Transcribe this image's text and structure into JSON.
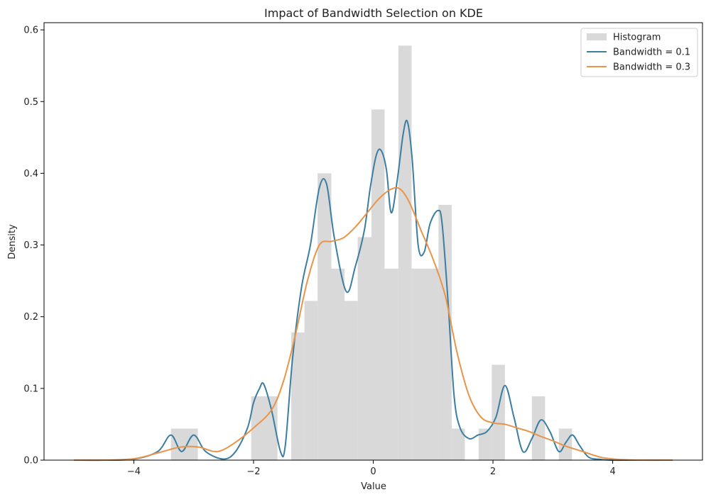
{
  "chart_data": {
    "type": "bar",
    "title": "Impact of Bandwidth Selection on KDE",
    "xlabel": "Value",
    "ylabel": "Density",
    "xlim": [
      -5.5,
      5.5
    ],
    "ylim": [
      0,
      0.61
    ],
    "xticks": [
      -4,
      -2,
      0,
      2,
      4
    ],
    "xtick_labels": [
      "−4",
      "−2",
      "0",
      "2",
      "4"
    ],
    "yticks": [
      0.0,
      0.1,
      0.2,
      0.3,
      0.4,
      0.5,
      0.6
    ],
    "ytick_labels": [
      "0.0",
      "0.1",
      "0.2",
      "0.3",
      "0.4",
      "0.5",
      "0.6"
    ],
    "grid": false,
    "legend_position": "top-right",
    "histogram": {
      "name": "Histogram",
      "color": "#d9d9d9",
      "bins": [
        {
          "x0": -3.38,
          "x1": -2.93,
          "h": 0.044
        },
        {
          "x0": -2.04,
          "x1": -1.6,
          "h": 0.089
        },
        {
          "x0": -1.37,
          "x1": -1.15,
          "h": 0.178
        },
        {
          "x0": -1.15,
          "x1": -0.93,
          "h": 0.222
        },
        {
          "x0": -0.93,
          "x1": -0.7,
          "h": 0.4
        },
        {
          "x0": -0.7,
          "x1": -0.48,
          "h": 0.267
        },
        {
          "x0": -0.48,
          "x1": -0.26,
          "h": 0.222
        },
        {
          "x0": -0.26,
          "x1": -0.03,
          "h": 0.311
        },
        {
          "x0": -0.03,
          "x1": 0.19,
          "h": 0.489
        },
        {
          "x0": 0.19,
          "x1": 0.42,
          "h": 0.267
        },
        {
          "x0": 0.42,
          "x1": 0.64,
          "h": 0.578
        },
        {
          "x0": 0.64,
          "x1": 0.86,
          "h": 0.267
        },
        {
          "x0": 0.86,
          "x1": 1.09,
          "h": 0.267
        },
        {
          "x0": 1.09,
          "x1": 1.31,
          "h": 0.356
        },
        {
          "x0": 1.31,
          "x1": 1.53,
          "h": 0.044
        },
        {
          "x0": 1.76,
          "x1": 1.98,
          "h": 0.044
        },
        {
          "x0": 1.98,
          "x1": 2.2,
          "h": 0.133
        },
        {
          "x0": 2.65,
          "x1": 2.87,
          "h": 0.089
        },
        {
          "x0": 3.1,
          "x1": 3.32,
          "h": 0.044
        }
      ]
    },
    "series": [
      {
        "name": "Bandwidth = 0.1",
        "type": "line",
        "color": "#3b7ea1",
        "x": [
          -5.0,
          -4.5,
          -4.0,
          -3.6,
          -3.38,
          -3.2,
          -3.0,
          -2.8,
          -2.5,
          -2.3,
          -2.1,
          -2.0,
          -1.9,
          -1.83,
          -1.7,
          -1.55,
          -1.47,
          -1.35,
          -1.2,
          -1.05,
          -0.9,
          -0.78,
          -0.65,
          -0.45,
          -0.3,
          -0.15,
          -0.05,
          0.05,
          0.13,
          0.22,
          0.3,
          0.4,
          0.5,
          0.57,
          0.65,
          0.75,
          0.85,
          0.95,
          1.08,
          1.15,
          1.25,
          1.35,
          1.45,
          1.6,
          1.75,
          1.9,
          2.05,
          2.2,
          2.35,
          2.5,
          2.65,
          2.8,
          2.95,
          3.1,
          3.22,
          3.33,
          3.45,
          3.6,
          3.8,
          4.0,
          4.3,
          4.6,
          5.0
        ],
        "y": [
          0.0,
          0.0,
          0.0015,
          0.012,
          0.035,
          0.012,
          0.035,
          0.012,
          0.0015,
          0.012,
          0.045,
          0.08,
          0.1,
          0.106,
          0.07,
          0.012,
          0.02,
          0.14,
          0.24,
          0.3,
          0.38,
          0.385,
          0.31,
          0.235,
          0.27,
          0.32,
          0.38,
          0.425,
          0.432,
          0.405,
          0.345,
          0.39,
          0.455,
          0.472,
          0.42,
          0.3,
          0.29,
          0.33,
          0.348,
          0.33,
          0.22,
          0.09,
          0.045,
          0.03,
          0.035,
          0.04,
          0.06,
          0.104,
          0.06,
          0.012,
          0.03,
          0.056,
          0.04,
          0.012,
          0.025,
          0.035,
          0.02,
          0.004,
          0.001,
          0.0,
          0.0,
          0.0,
          0.0
        ]
      },
      {
        "name": "Bandwidth = 0.3",
        "type": "line",
        "color": "#e8944a",
        "x": [
          -5.0,
          -4.5,
          -4.0,
          -3.6,
          -3.3,
          -3.1,
          -2.9,
          -2.6,
          -2.3,
          -2.0,
          -1.7,
          -1.5,
          -1.3,
          -1.1,
          -0.9,
          -0.7,
          -0.5,
          -0.3,
          -0.1,
          0.1,
          0.3,
          0.45,
          0.6,
          0.8,
          1.0,
          1.2,
          1.4,
          1.6,
          1.8,
          2.0,
          2.2,
          2.4,
          2.6,
          2.8,
          3.0,
          3.2,
          3.5,
          3.8,
          4.1,
          4.5,
          5.0
        ],
        "y": [
          0.0,
          0.0,
          0.002,
          0.01,
          0.017,
          0.019,
          0.018,
          0.012,
          0.025,
          0.045,
          0.07,
          0.11,
          0.175,
          0.25,
          0.3,
          0.305,
          0.31,
          0.325,
          0.345,
          0.365,
          0.378,
          0.378,
          0.36,
          0.32,
          0.28,
          0.23,
          0.15,
          0.09,
          0.06,
          0.052,
          0.05,
          0.045,
          0.04,
          0.033,
          0.027,
          0.02,
          0.012,
          0.004,
          0.001,
          0.0,
          0.0
        ]
      }
    ],
    "legend": [
      {
        "label": "Histogram",
        "kind": "patch",
        "color": "#d9d9d9"
      },
      {
        "label": "Bandwidth = 0.1",
        "kind": "line",
        "color": "#3b7ea1"
      },
      {
        "label": "Bandwidth = 0.3",
        "kind": "line",
        "color": "#e8944a"
      }
    ]
  }
}
